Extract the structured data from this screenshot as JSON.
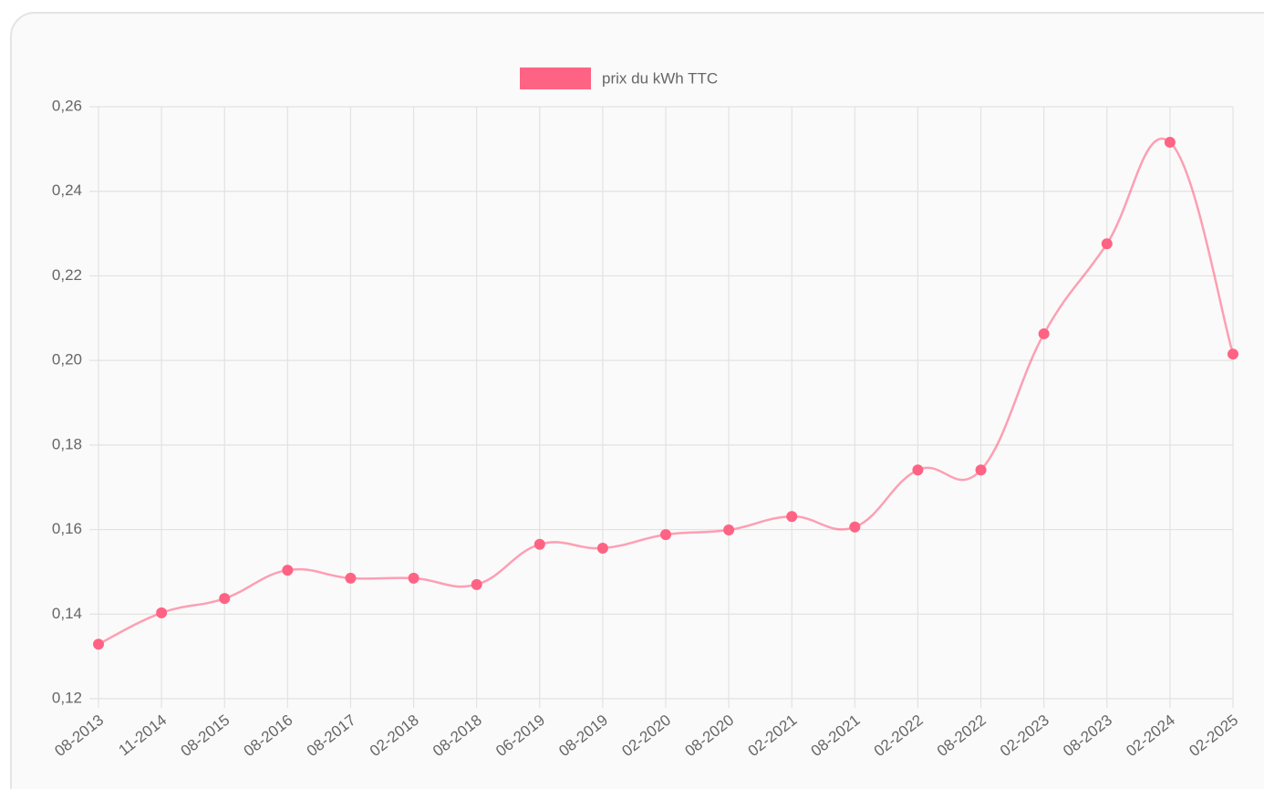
{
  "chart_data": {
    "type": "line",
    "categories": [
      "08-2013",
      "11-2014",
      "08-2015",
      "08-2016",
      "08-2017",
      "02-2018",
      "08-2018",
      "06-2019",
      "08-2019",
      "02-2020",
      "08-2020",
      "02-2021",
      "08-2021",
      "02-2022",
      "08-2022",
      "02-2023",
      "08-2023",
      "02-2024",
      "02-2025"
    ],
    "series": [
      {
        "name": "prix du kWh TTC",
        "color": "#ff6384",
        "values": [
          0.1329,
          0.1403,
          0.1437,
          0.1504,
          0.1485,
          0.1485,
          0.147,
          0.1565,
          0.1556,
          0.1588,
          0.1599,
          0.1631,
          0.1606,
          0.1741,
          0.1741,
          0.2063,
          0.2276,
          0.2516,
          0.2015
        ]
      }
    ],
    "ylim": [
      0.12,
      0.26
    ],
    "yticks": [
      {
        "value": 0.12,
        "label": "0,12"
      },
      {
        "value": 0.14,
        "label": "0,14"
      },
      {
        "value": 0.16,
        "label": "0,16"
      },
      {
        "value": 0.18,
        "label": "0,18"
      },
      {
        "value": 0.2,
        "label": "0,20"
      },
      {
        "value": 0.22,
        "label": "0,22"
      },
      {
        "value": 0.24,
        "label": "0,24"
      },
      {
        "value": 0.26,
        "label": "0,26"
      }
    ],
    "grid": true,
    "legend": "top"
  }
}
